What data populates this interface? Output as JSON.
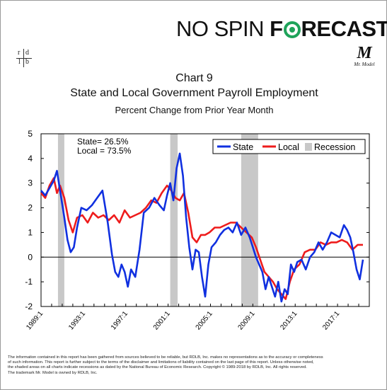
{
  "brand": {
    "left": "NO SPIN",
    "bold_before": "F",
    "bold_after": "RECAST",
    "ring_color": "#1fa35a"
  },
  "badges": {
    "rdlb": [
      "r",
      "d",
      "l",
      "b"
    ],
    "mr_model_mark": "M",
    "mr_model_text": "Mr. Model"
  },
  "chart_data": {
    "type": "line",
    "title": "Chart 9",
    "subtitle": "State and Local Government Payroll Employment",
    "subtitle2": "Percent Change from Prior Year Month",
    "ylim": [
      -2,
      5
    ],
    "yticks": [
      -2,
      -1,
      0,
      1,
      2,
      3,
      4,
      5
    ],
    "xlim": [
      1989.0,
      2020.0
    ],
    "xticks": [
      "1989:1",
      "1993:1",
      "1997:1",
      "2001:1",
      "2005:1",
      "2009:1",
      "2013:1",
      "2017:1"
    ],
    "annotations": [
      "State=  26.5%",
      "Local = 73.5%"
    ],
    "legend": {
      "position": "top-right",
      "items": [
        "State",
        "Local",
        "Recession"
      ]
    },
    "colors": {
      "State": "#1030e0",
      "Local": "#ee1c1c",
      "Recession": "#c8c8c8"
    },
    "recessions": [
      [
        1990.6,
        1991.2
      ],
      [
        2001.2,
        2001.9
      ],
      [
        2007.9,
        2009.5
      ]
    ],
    "series": [
      {
        "name": "State",
        "x": [
          1989.0,
          1989.4,
          1989.8,
          1990.2,
          1990.5,
          1990.8,
          1991.2,
          1991.5,
          1991.8,
          1992.1,
          1992.4,
          1992.8,
          1993.3,
          1993.8,
          1994.3,
          1994.8,
          1995.3,
          1995.7,
          1996.0,
          1996.3,
          1996.6,
          1996.9,
          1997.2,
          1997.5,
          1997.9,
          1998.3,
          1998.7,
          1999.2,
          1999.7,
          2000.2,
          2000.6,
          2000.9,
          2001.2,
          2001.5,
          2001.8,
          2002.1,
          2002.4,
          2002.7,
          2003.0,
          2003.3,
          2003.6,
          2003.9,
          2004.2,
          2004.5,
          2004.8,
          2005.1,
          2005.5,
          2005.9,
          2006.3,
          2006.7,
          2007.1,
          2007.5,
          2007.9,
          2008.3,
          2008.7,
          2009.0,
          2009.3,
          2009.6,
          2009.9,
          2010.2,
          2010.5,
          2010.8,
          2011.1,
          2011.4,
          2011.7,
          2012.0,
          2012.3,
          2012.6,
          2012.9,
          2013.2,
          2013.6,
          2014.0,
          2014.4,
          2014.8,
          2015.2,
          2015.6,
          2016.0,
          2016.4,
          2016.8,
          2017.2,
          2017.6,
          2017.9,
          2018.2,
          2018.5,
          2018.8,
          2019.1,
          2019.4
        ],
        "values": [
          2.7,
          2.5,
          2.8,
          3.1,
          3.5,
          2.7,
          1.6,
          0.7,
          0.2,
          0.4,
          1.2,
          2.0,
          1.9,
          2.1,
          2.4,
          2.7,
          1.4,
          0.1,
          -0.6,
          -0.8,
          -0.3,
          -0.6,
          -1.2,
          -0.5,
          -0.8,
          0.3,
          1.8,
          2.0,
          2.4,
          2.1,
          1.9,
          2.5,
          3.0,
          2.3,
          3.6,
          4.2,
          3.3,
          1.6,
          0.4,
          -0.5,
          0.3,
          0.2,
          -0.8,
          -1.6,
          -0.3,
          0.4,
          0.6,
          0.9,
          1.1,
          1.2,
          1.0,
          1.4,
          0.9,
          1.2,
          0.8,
          0.4,
          0.0,
          -0.3,
          -0.6,
          -1.3,
          -0.8,
          -1.2,
          -1.6,
          -1.0,
          -1.8,
          -1.3,
          -1.5,
          -0.3,
          -0.6,
          -0.2,
          -0.1,
          -0.5,
          0.0,
          0.2,
          0.6,
          0.3,
          0.6,
          1.0,
          0.9,
          0.8,
          1.3,
          1.1,
          0.8,
          0.2,
          -0.5,
          -0.9,
          -0.1
        ]
      },
      {
        "name": "Local",
        "x": [
          1989.0,
          1989.4,
          1989.8,
          1990.2,
          1990.5,
          1990.8,
          1991.2,
          1991.6,
          1992.0,
          1992.4,
          1992.9,
          1993.4,
          1993.9,
          1994.4,
          1994.9,
          1995.4,
          1995.9,
          1996.4,
          1996.9,
          1997.4,
          1997.9,
          1998.4,
          1998.9,
          1999.4,
          1999.9,
          2000.4,
          2000.9,
          2001.3,
          2001.7,
          2002.1,
          2002.5,
          2002.9,
          2003.3,
          2003.7,
          2004.1,
          2004.5,
          2004.9,
          2005.4,
          2005.9,
          2006.4,
          2006.9,
          2007.4,
          2007.9,
          2008.4,
          2008.9,
          2009.3,
          2009.7,
          2010.1,
          2010.5,
          2010.9,
          2011.3,
          2011.7,
          2012.1,
          2012.5,
          2012.9,
          2013.4,
          2013.9,
          2014.4,
          2014.9,
          2015.4,
          2015.9,
          2016.4,
          2016.9,
          2017.4,
          2017.9,
          2018.4,
          2018.9,
          2019.4
        ],
        "values": [
          2.6,
          2.4,
          2.9,
          3.2,
          2.6,
          2.9,
          2.4,
          1.5,
          1.0,
          1.6,
          1.7,
          1.4,
          1.8,
          1.6,
          1.7,
          1.5,
          1.7,
          1.4,
          1.9,
          1.6,
          1.7,
          1.8,
          2.0,
          2.3,
          2.2,
          2.6,
          2.9,
          2.7,
          2.4,
          2.3,
          2.6,
          1.8,
          0.8,
          0.6,
          0.9,
          0.9,
          1.0,
          1.2,
          1.2,
          1.3,
          1.4,
          1.4,
          1.2,
          1.0,
          0.8,
          0.4,
          -0.1,
          -0.6,
          -0.8,
          -1.0,
          -1.3,
          -1.5,
          -1.7,
          -1.0,
          -0.5,
          -0.3,
          0.2,
          0.3,
          0.3,
          0.6,
          0.5,
          0.6,
          0.6,
          0.7,
          0.6,
          0.3,
          0.5,
          0.5
        ]
      }
    ]
  },
  "footer": [
    "The information contained in this report has been gathered from sources believed to be reliable, but RDLB, Inc. makes no representations as to the accuracy or completeness",
    "of such information. This report is further subject to the terms of the disclaimer and limitations of liability contained on the last page of this report.  Unless otherwise noted,",
    "the shaded areas on all charts indicate recessions as dated by the National Bureau of Economic Research. Copyright © 1989-2018 by RDLB, Inc. All rights reserved.",
    "The trademark Mr. Model is owned by RDLB, Inc."
  ]
}
